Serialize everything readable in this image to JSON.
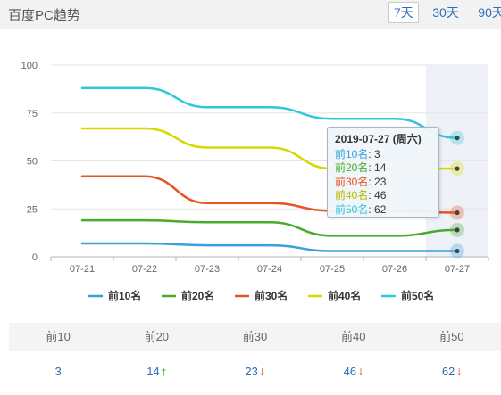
{
  "header": {
    "title": "百度PC趋势",
    "range_tabs": [
      {
        "label": "7天",
        "active": true
      },
      {
        "label": "30天",
        "active": false
      },
      {
        "label": "90天",
        "active": false
      }
    ]
  },
  "chart_data": {
    "type": "line",
    "categories": [
      "07-21",
      "07-22",
      "07-23",
      "07-24",
      "07-25",
      "07-26",
      "07-27"
    ],
    "ylim": [
      0,
      100
    ],
    "yticks": [
      0,
      25,
      50,
      75,
      100
    ],
    "grid": true,
    "legend_position": "bottom",
    "highlight_category": "07-27",
    "series": [
      {
        "name": "前10名",
        "color": "#3aa0da",
        "values": [
          7,
          7,
          6,
          6,
          3,
          3,
          3
        ]
      },
      {
        "name": "前20名",
        "color": "#4aaa2c",
        "values": [
          19,
          19,
          18,
          18,
          11,
          11,
          14
        ]
      },
      {
        "name": "前30名",
        "color": "#e55422",
        "values": [
          42,
          42,
          28,
          28,
          24,
          24,
          23
        ]
      },
      {
        "name": "前40名",
        "color": "#d8d800",
        "values": [
          67,
          67,
          57,
          57,
          46,
          46,
          46
        ]
      },
      {
        "name": "前50名",
        "color": "#2fc7dc",
        "values": [
          88,
          88,
          78,
          78,
          72,
          72,
          62
        ]
      }
    ],
    "tooltip": {
      "title": "2019-07-27 (周六)",
      "rows": [
        {
          "name": "前10名",
          "value": "3",
          "color": "#3aa0da"
        },
        {
          "name": "前20名",
          "value": "14",
          "color": "#4aaa2c"
        },
        {
          "name": "前30名",
          "value": "23",
          "color": "#e55422"
        },
        {
          "name": "前40名",
          "value": "46",
          "color": "#b8b800"
        },
        {
          "name": "前50名",
          "value": "62",
          "color": "#2fc7dc"
        }
      ]
    }
  },
  "summary_table": {
    "headers": [
      "前10",
      "前20",
      "前30",
      "前40",
      "前50"
    ],
    "values": [
      {
        "value": "3",
        "trend": ""
      },
      {
        "value": "14",
        "trend": "up"
      },
      {
        "value": "23",
        "trend": "down"
      },
      {
        "value": "46",
        "trend": "down"
      },
      {
        "value": "62",
        "trend": "down"
      }
    ]
  }
}
